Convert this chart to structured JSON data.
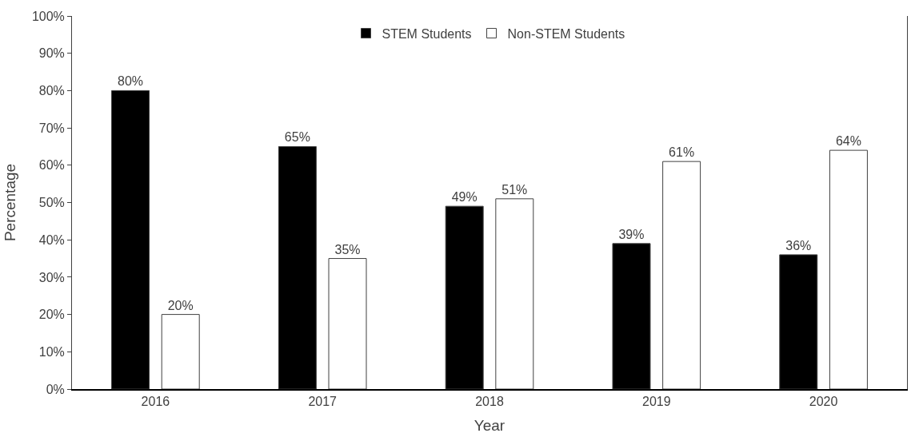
{
  "chart_data": {
    "type": "bar",
    "xlabel": "Year",
    "ylabel": "Percentage",
    "categories": [
      "2016",
      "2017",
      "2018",
      "2019",
      "2020"
    ],
    "series": [
      {
        "name": "STEM Students",
        "color": "#000000",
        "values": [
          80,
          65,
          49,
          39,
          36
        ],
        "value_labels": [
          "80%",
          "65%",
          "49%",
          "39%",
          "36%"
        ]
      },
      {
        "name": "Non-STEM Students",
        "color": "#ffffff",
        "values": [
          20,
          35,
          51,
          61,
          64
        ],
        "value_labels": [
          "20%",
          "35%",
          "51%",
          "61%",
          "64%"
        ]
      }
    ],
    "ylim": [
      0,
      100
    ],
    "yticks": [
      {
        "value": 0,
        "label": "0%"
      },
      {
        "value": 10,
        "label": "10%"
      },
      {
        "value": 20,
        "label": "20%"
      },
      {
        "value": 30,
        "label": "30%"
      },
      {
        "value": 40,
        "label": "40%"
      },
      {
        "value": 50,
        "label": "50%"
      },
      {
        "value": 60,
        "label": "60%"
      },
      {
        "value": 70,
        "label": "70%"
      },
      {
        "value": 80,
        "label": "80%"
      },
      {
        "value": 90,
        "label": "90%"
      },
      {
        "value": 100,
        "label": "100%"
      }
    ],
    "grid": false,
    "legend": "top"
  }
}
